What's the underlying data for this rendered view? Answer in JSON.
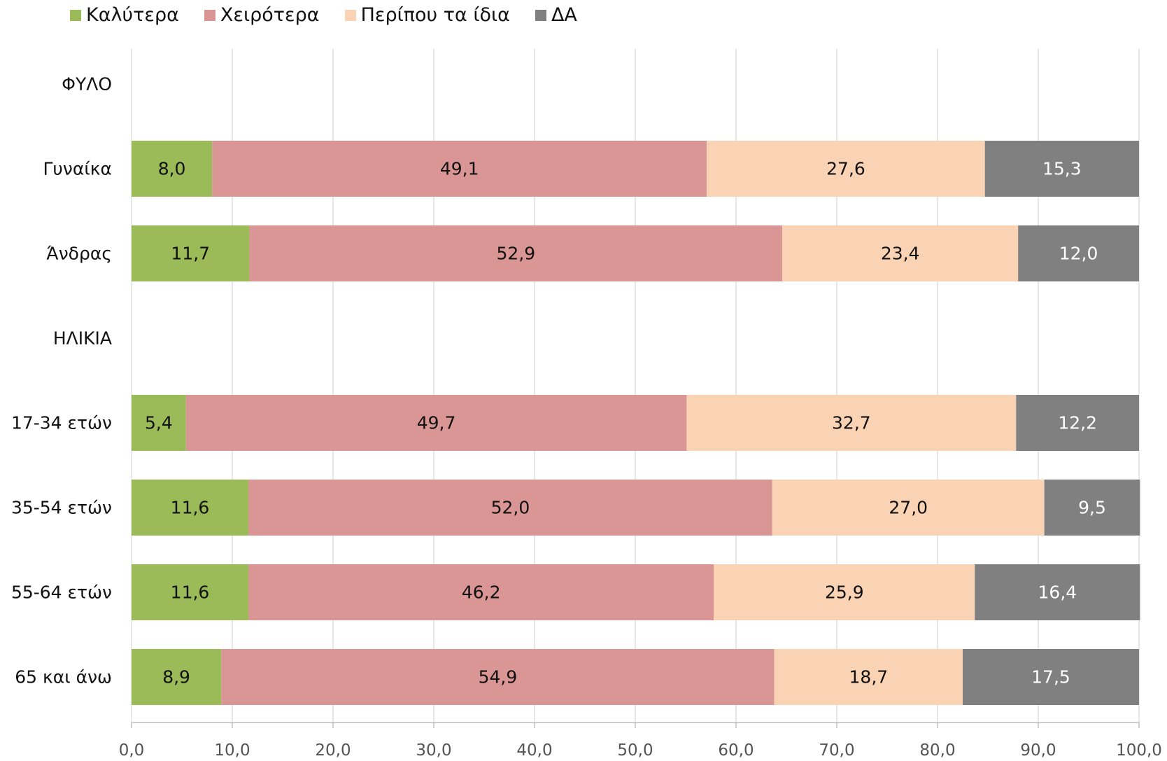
{
  "chart_data": {
    "type": "bar",
    "orientation": "horizontal",
    "stacked": true,
    "xlim": [
      0,
      100
    ],
    "x_ticks": [
      "0,0",
      "10,0",
      "20,0",
      "30,0",
      "40,0",
      "50,0",
      "60,0",
      "70,0",
      "80,0",
      "90,0",
      "100,0"
    ],
    "grid": true,
    "legend_position": "top-left",
    "categories": [
      "ΦΥΛΟ",
      "Γυναίκα",
      "Άνδρας",
      "ΗΛΙΚΙΑ",
      "17-34 ετών",
      "35-54 ετών",
      "55-64 ετών",
      "65 και άνω"
    ],
    "series": [
      {
        "name": "Καλύτερα",
        "color": "#9BBB59",
        "text_color": "#111111",
        "values": [
          null,
          8.0,
          11.7,
          null,
          5.4,
          11.6,
          11.6,
          8.9
        ],
        "labels": [
          "",
          "8,0",
          "11,7",
          "",
          "5,4",
          "11,6",
          "11,6",
          "8,9"
        ]
      },
      {
        "name": "Χειρότερα",
        "color": "#D99694",
        "text_color": "#111111",
        "values": [
          null,
          49.1,
          52.9,
          null,
          49.7,
          52.0,
          46.2,
          54.9
        ],
        "labels": [
          "",
          "49,1",
          "52,9",
          "",
          "49,7",
          "52,0",
          "46,2",
          "54,9"
        ]
      },
      {
        "name": "Περίπου τα ίδια",
        "color": "#FAD3B4",
        "text_color": "#111111",
        "values": [
          null,
          27.6,
          23.4,
          null,
          32.7,
          27.0,
          25.9,
          18.7
        ],
        "labels": [
          "",
          "27,6",
          "23,4",
          "",
          "32,7",
          "27,0",
          "25,9",
          "18,7"
        ]
      },
      {
        "name": "ΔΑ",
        "color": "#808080",
        "text_color": "#ffffff",
        "values": [
          null,
          15.3,
          12.0,
          null,
          12.2,
          9.5,
          16.4,
          17.5
        ],
        "labels": [
          "",
          "15,3",
          "12,0",
          "",
          "12,2",
          "9,5",
          "16,4",
          "17,5"
        ]
      }
    ]
  }
}
